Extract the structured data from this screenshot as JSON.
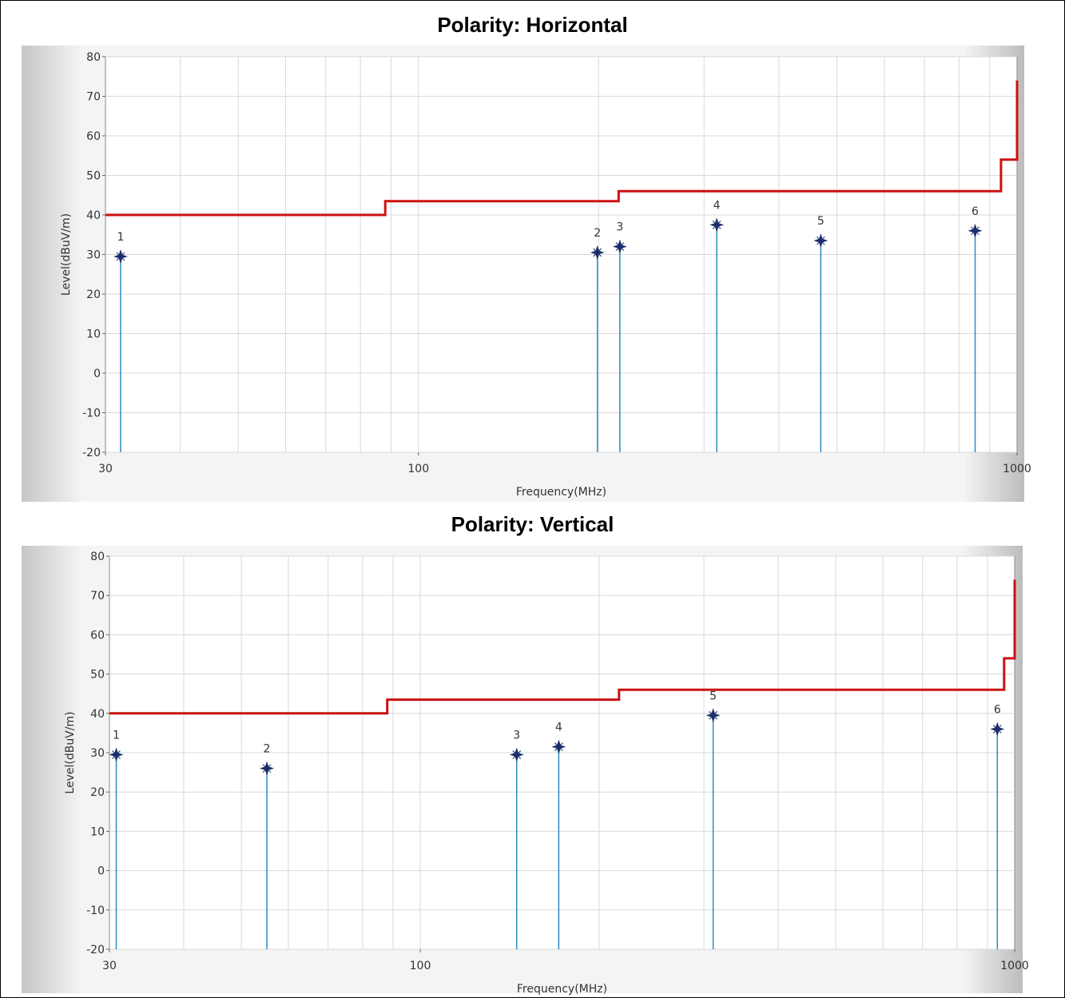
{
  "chart_data": [
    {
      "type": "line",
      "title": "Polarity: Horizontal",
      "xlabel": "Frequency(MHz)",
      "ylabel": "Level(dBuV/m)",
      "xscale": "log",
      "xlim": [
        30,
        1000
      ],
      "ylim": [
        -20,
        80
      ],
      "xticks": [
        30,
        100,
        1000
      ],
      "yticks": [
        80,
        70,
        60,
        50,
        40,
        30,
        20,
        10,
        0,
        -10,
        -20
      ],
      "grid": true,
      "series": [
        {
          "role": "limit",
          "color": "#cc1111",
          "x": [
            30,
            88,
            88,
            216,
            216,
            940,
            940,
            990,
            990,
            1000,
            1000
          ],
          "y": [
            40,
            40,
            43.5,
            43.5,
            46,
            46,
            54,
            54,
            54,
            54,
            74
          ]
        },
        {
          "role": "markers",
          "color": "#2b8cc4",
          "labels": [
            "1",
            "2",
            "3",
            "4",
            "5",
            "6"
          ],
          "x": [
            31.8,
            199,
            217,
            315,
            470,
            851
          ],
          "y": [
            29.5,
            30.5,
            32,
            37.5,
            33.5,
            36
          ]
        }
      ]
    },
    {
      "type": "line",
      "title": "Polarity: Vertical",
      "xlabel": "Frequency(MHz)",
      "ylabel": "Level(dBuV/m)",
      "xscale": "log",
      "xlim": [
        30,
        1000
      ],
      "ylim": [
        -20,
        80
      ],
      "xticks": [
        30,
        100,
        1000
      ],
      "yticks": [
        80,
        70,
        60,
        50,
        40,
        30,
        20,
        10,
        0,
        -10,
        -20
      ],
      "grid": true,
      "series": [
        {
          "role": "limit",
          "color": "#cc1111",
          "x": [
            30,
            88,
            88,
            216,
            216,
            960,
            960,
            990,
            990,
            1000,
            1000
          ],
          "y": [
            40,
            40,
            43.5,
            43.5,
            46,
            46,
            54,
            54,
            54,
            54,
            74
          ]
        },
        {
          "role": "markers",
          "color": "#2b8cc4",
          "labels": [
            "1",
            "2",
            "3",
            "4",
            "5",
            "6"
          ],
          "x": [
            30.8,
            55.2,
            145.3,
            171,
            311,
            935
          ],
          "y": [
            29.5,
            26,
            29.5,
            31.5,
            39.5,
            36
          ]
        }
      ]
    }
  ]
}
